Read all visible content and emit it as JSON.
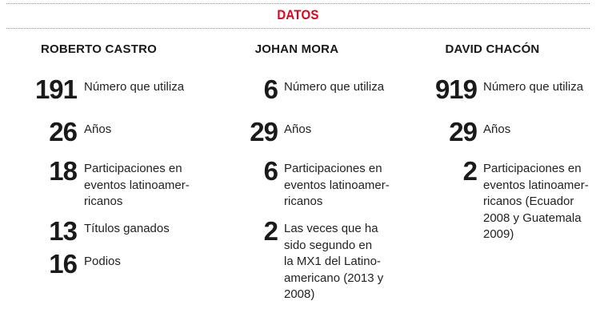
{
  "section_title": "DATOS",
  "columns": [
    {
      "name": "ROBERTO CASTRO",
      "facts": [
        {
          "number": "191",
          "text": "Número que utiliza"
        },
        {
          "number": "26",
          "text": "Años"
        },
        {
          "number": "18",
          "text": "Participaciones en\neventos latinoamer-\nricanos"
        },
        {
          "number": "13",
          "text": "Títulos ganados"
        },
        {
          "number": "16",
          "text": "Podios"
        }
      ]
    },
    {
      "name": "JOHAN MORA",
      "facts": [
        {
          "number": "6",
          "text": "Número que utiliza"
        },
        {
          "number": "29",
          "text": "Años"
        },
        {
          "number": "6",
          "text": "Participaciones en\neventos latinoamer-\nricanos"
        },
        {
          "number": "2",
          "text": "Las veces que ha\nsido segundo en\nla MX1 del Latino-\namericano (2013 y\n2008)"
        }
      ]
    },
    {
      "name": "DAVID CHACÓN",
      "facts": [
        {
          "number": "919",
          "text": "Número que utiliza"
        },
        {
          "number": "29",
          "text": "Años"
        },
        {
          "number": "2",
          "text": "Participaciones en\neventos latinoamer-\nricanos (Ecuador\n2008 y Guatemala\n2009)"
        }
      ]
    }
  ]
}
